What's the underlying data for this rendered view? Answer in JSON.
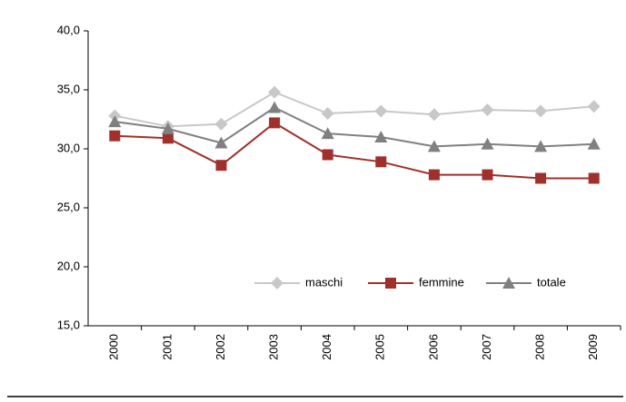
{
  "chart_data": {
    "type": "line",
    "categories": [
      "2000",
      "2001",
      "2002",
      "2003",
      "2004",
      "2005",
      "2006",
      "2007",
      "2008",
      "2009"
    ],
    "series": [
      {
        "name": "maschi",
        "color": "#c8c8c8",
        "marker": "diamond",
        "values": [
          32.8,
          31.9,
          32.1,
          34.8,
          33.0,
          33.2,
          32.9,
          33.3,
          33.2,
          33.6
        ]
      },
      {
        "name": "femmine",
        "color": "#a0302c",
        "marker": "square",
        "values": [
          31.1,
          30.9,
          28.6,
          32.2,
          29.5,
          28.9,
          27.8,
          27.8,
          27.5,
          27.5
        ]
      },
      {
        "name": "totale",
        "color": "#808080",
        "marker": "triangle",
        "values": [
          32.3,
          31.7,
          30.5,
          33.5,
          31.3,
          31.0,
          30.2,
          30.4,
          30.2,
          30.4
        ]
      }
    ],
    "ylim": [
      15,
      40
    ],
    "yticks": [
      {
        "value": 15,
        "label": "15,0"
      },
      {
        "value": 20,
        "label": "20,0"
      },
      {
        "value": 25,
        "label": "25,0"
      },
      {
        "value": 30,
        "label": "30,0"
      },
      {
        "value": 35,
        "label": "35,0"
      },
      {
        "value": 40,
        "label": "40,0"
      }
    ],
    "grid": false,
    "legend_position": "lower right"
  }
}
